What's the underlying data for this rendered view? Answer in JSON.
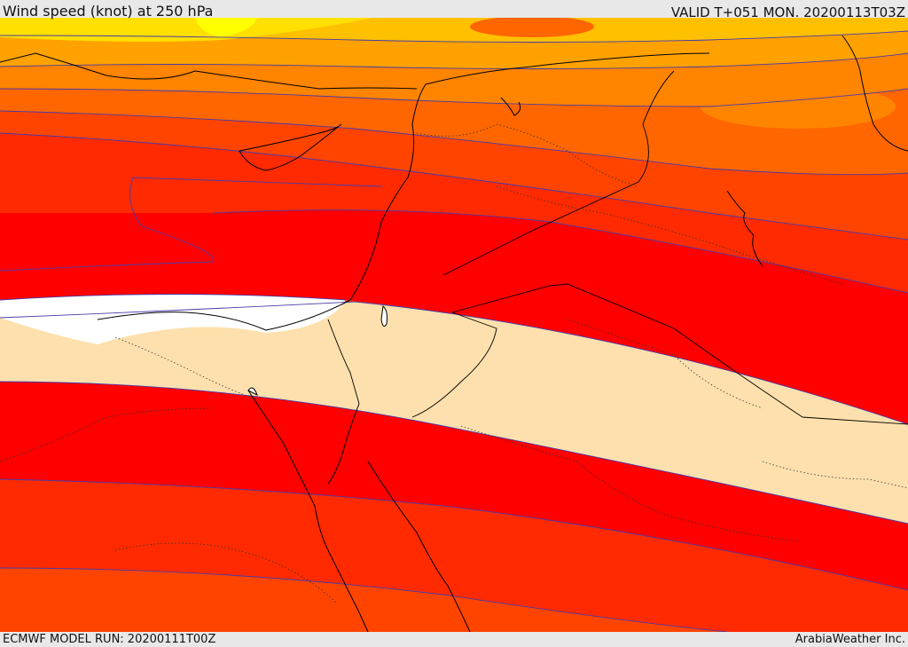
{
  "header": {
    "title": "Wind speed (knot) at 250 hPa",
    "valid": "VALID T+051 MON. 20200113T03Z"
  },
  "footer": {
    "model_run": "ECMWF MODEL RUN: 20200111T00Z",
    "credit": "ArabiaWeather Inc."
  },
  "colors": {
    "calm": "#ffffff",
    "band_1": "#fde0ad",
    "band_2": "#ff0000",
    "band_3": "#ff2a00",
    "band_4": "#ff4400",
    "band_5": "#ff6600",
    "band_6": "#ff8400",
    "band_7": "#ffa200",
    "band_8": "#ffc000",
    "band_9": "#ffe000",
    "band_10": "#ffff00",
    "contour_line": "#4a3aa8",
    "coastline": "#000000"
  }
}
